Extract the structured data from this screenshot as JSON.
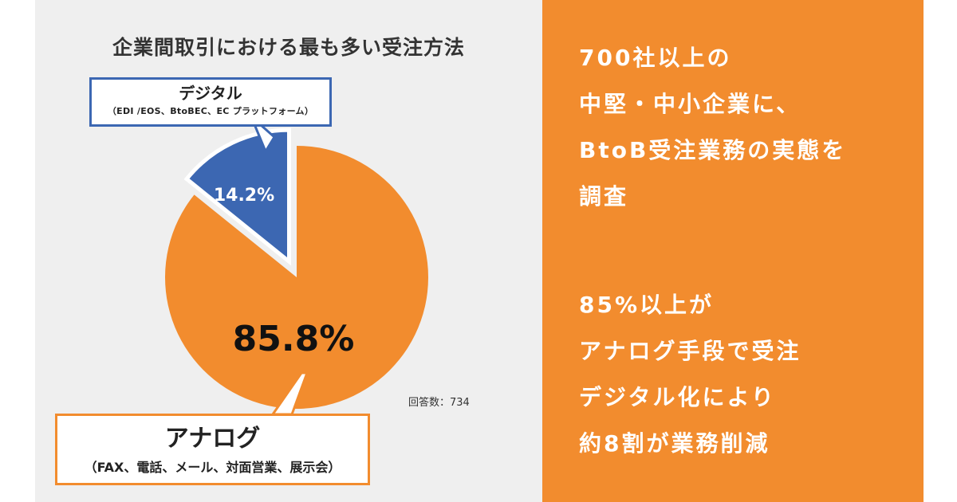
{
  "chart_data": {
    "type": "pie",
    "title": "企業間取引における最も多い受注方法",
    "slices": [
      {
        "label": "デジタル",
        "sublabel": "（EDI /EOS、BtoBEC、EC プラットフォーム）",
        "value": 14.2,
        "value_label": "14.2%",
        "color": "#3c67b2",
        "exploded": true
      },
      {
        "label": "アナログ",
        "sublabel": "（FAX、電話、メール、対面営業、展示会）",
        "value": 85.8,
        "value_label": "85.8%",
        "color": "#f28c2e",
        "exploded": false
      }
    ],
    "start": "12 o'clock",
    "direction": "counterclockwise",
    "note": "回答数：734"
  },
  "colors": {
    "left_background": "#efefef",
    "right_background": "#f28c2e",
    "digital": "#3c67b2",
    "analog": "#f28c2e",
    "text_dark": "#222222",
    "text_light": "#ffffff"
  },
  "headline": {
    "block1": [
      "700社以上の",
      "中堅・中小企業に、",
      "BtoB受注業務の実態を",
      "調査"
    ],
    "block2": [
      "85%以上が",
      "アナログ手段で受注",
      "デジタル化により",
      "約8割が業務削減"
    ]
  }
}
